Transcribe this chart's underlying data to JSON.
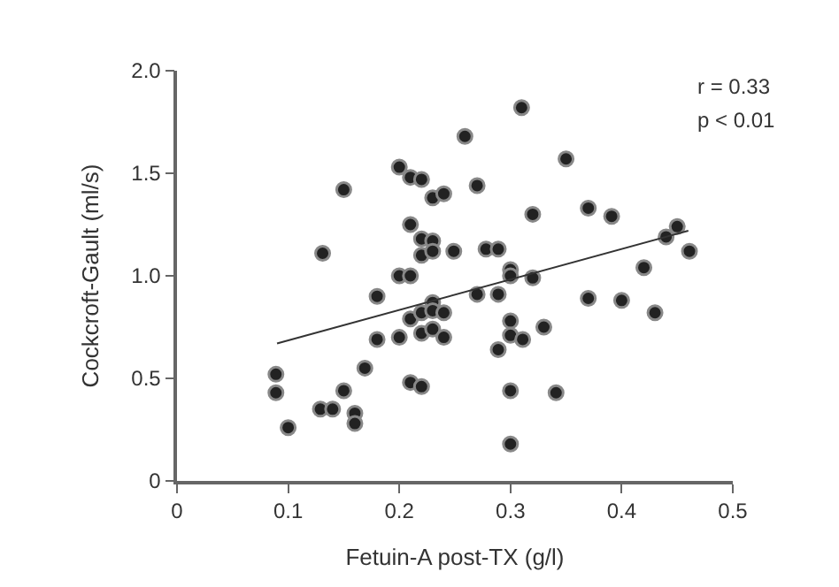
{
  "chart_data": {
    "type": "scatter",
    "xlabel": "Fetuin-A post-TX (g/l)",
    "ylabel": "Cockcroft-Gault (ml/s)",
    "xlim": [
      0,
      0.5
    ],
    "xticks": [
      0,
      0.1,
      0.2,
      0.3,
      0.4,
      0.5
    ],
    "ylim": [
      0,
      2.0
    ],
    "yticks": [
      0,
      {
        "value": 0.5,
        "label": "0.5"
      },
      {
        "value": 1.0,
        "label": "1.0"
      },
      {
        "value": 1.5,
        "label": "1.5"
      },
      {
        "value": 2.0,
        "label": "2.0"
      }
    ],
    "marker": "circle",
    "annotations": [
      "r = 0.33",
      "p < 0.01"
    ],
    "series": [
      {
        "color": "#222222",
        "x": [
          0.089,
          0.089,
          0.1,
          0.131,
          0.15,
          0.129,
          0.14,
          0.15,
          0.16,
          0.16,
          0.169,
          0.18,
          0.18,
          0.2,
          0.21,
          0.22,
          0.23,
          0.24,
          0.21,
          0.22,
          0.23,
          0.22,
          0.23,
          0.249,
          0.2,
          0.21,
          0.2,
          0.21,
          0.22,
          0.23,
          0.23,
          0.24,
          0.22,
          0.23,
          0.24,
          0.21,
          0.22,
          0.259,
          0.31,
          0.35,
          0.27,
          0.32,
          0.37,
          0.391,
          0.278,
          0.289,
          0.3,
          0.3,
          0.32,
          0.27,
          0.289,
          0.37,
          0.4,
          0.43,
          0.42,
          0.44,
          0.45,
          0.461,
          0.3,
          0.3,
          0.311,
          0.33,
          0.289,
          0.3,
          0.341,
          0.3
        ],
        "values": [
          0.52,
          0.43,
          0.26,
          1.11,
          1.42,
          0.35,
          0.35,
          0.44,
          0.33,
          0.28,
          0.55,
          0.69,
          0.9,
          1.53,
          1.48,
          1.47,
          1.38,
          1.4,
          1.25,
          1.18,
          1.17,
          1.1,
          1.12,
          1.12,
          1.0,
          1.0,
          0.7,
          0.79,
          0.82,
          0.87,
          0.83,
          0.82,
          0.72,
          0.74,
          0.7,
          0.48,
          0.46,
          1.68,
          1.82,
          1.57,
          1.44,
          1.3,
          1.33,
          1.29,
          1.13,
          1.13,
          1.03,
          1.0,
          0.99,
          0.91,
          0.91,
          0.89,
          0.88,
          0.82,
          1.04,
          1.19,
          1.24,
          1.12,
          0.78,
          0.71,
          0.69,
          0.75,
          0.64,
          0.44,
          0.43,
          0.18
        ]
      },
      {
        "color": "#333333",
        "type": "line",
        "marker": "none",
        "x": [
          0.09,
          0.46
        ],
        "values": [
          0.67,
          1.22
        ]
      }
    ]
  }
}
